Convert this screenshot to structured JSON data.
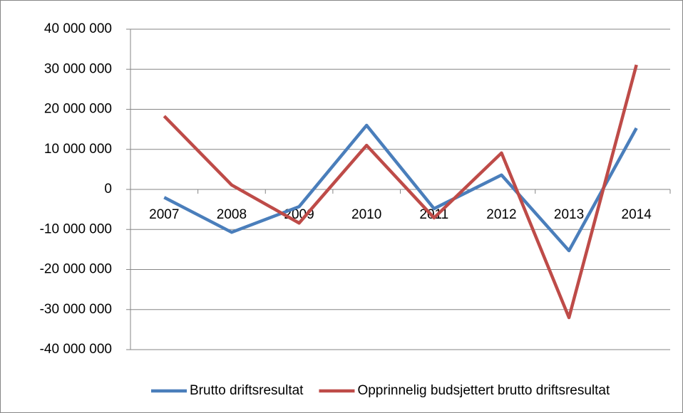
{
  "chart_data": {
    "type": "line",
    "categories": [
      "2007",
      "2008",
      "2009",
      "2010",
      "2011",
      "2012",
      "2013",
      "2014"
    ],
    "series": [
      {
        "name": "Brutto driftsresultat",
        "color": "#4a7ebb",
        "values": [
          -2000000,
          -10700000,
          -4300000,
          16000000,
          -4800000,
          3600000,
          -15300000,
          15300000
        ]
      },
      {
        "name": "Opprinnelig budsjettert brutto driftsresultat",
        "color": "#be4b48",
        "values": [
          18300000,
          1100000,
          -8400000,
          11000000,
          -7100000,
          9100000,
          -32000000,
          31100000
        ]
      }
    ],
    "ylim": [
      -40000000,
      40000000
    ],
    "yticks": [
      {
        "value": -40000000,
        "label": "-40 000 000"
      },
      {
        "value": -30000000,
        "label": "-30 000 000"
      },
      {
        "value": -20000000,
        "label": "-20 000 000"
      },
      {
        "value": -10000000,
        "label": "-10 000 000"
      },
      0,
      {
        "value": 10000000,
        "label": "10 000 000"
      },
      {
        "value": 20000000,
        "label": "20 000 000"
      },
      {
        "value": 30000000,
        "label": "30 000 000"
      },
      {
        "value": 40000000,
        "label": "40 000 000"
      }
    ],
    "grid": true,
    "legend": "bottom"
  }
}
